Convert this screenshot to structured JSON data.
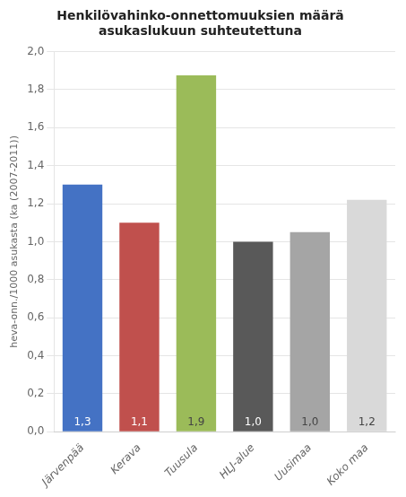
{
  "chart_data": {
    "type": "bar",
    "title": "Henkilövahinko-onnettomuuksien määrä\nasukaslukuun suhteutettuna",
    "categories": [
      "Järvenpää",
      "Kerava",
      "Tuusula",
      "HLJ-alue",
      "Uusimaa",
      "Koko maa"
    ],
    "values": [
      1.3,
      1.1,
      1.875,
      1.0,
      1.05,
      1.22
    ],
    "data_labels": true,
    "value_labels": [
      "1,3",
      "1,1",
      "1,9",
      "1,0",
      "1,0",
      "1,2"
    ],
    "colors": [
      "#4472C4",
      "#C0504D",
      "#9BBB59",
      "#595959",
      "#A5A5A5",
      "#D9D9D9"
    ],
    "ylabel": "heva-onn./1000 asukasta (ka (2007-2011))",
    "ylim": [
      0,
      2.0
    ],
    "yticks": [
      {
        "value": 0.0,
        "label": "0,0"
      },
      {
        "value": 0.2,
        "label": "0,2"
      },
      {
        "value": 0.4,
        "label": "0,4"
      },
      {
        "value": 0.6,
        "label": "0,6"
      },
      {
        "value": 0.8,
        "label": "0,8"
      },
      {
        "value": 1.0,
        "label": "1,0"
      },
      {
        "value": 1.2,
        "label": "1,2"
      },
      {
        "value": 1.4,
        "label": "1,4"
      },
      {
        "value": 1.6,
        "label": "1,6"
      },
      {
        "value": 1.8,
        "label": "1,8"
      },
      {
        "value": 2.0,
        "label": "2,0"
      }
    ],
    "grid": true
  }
}
